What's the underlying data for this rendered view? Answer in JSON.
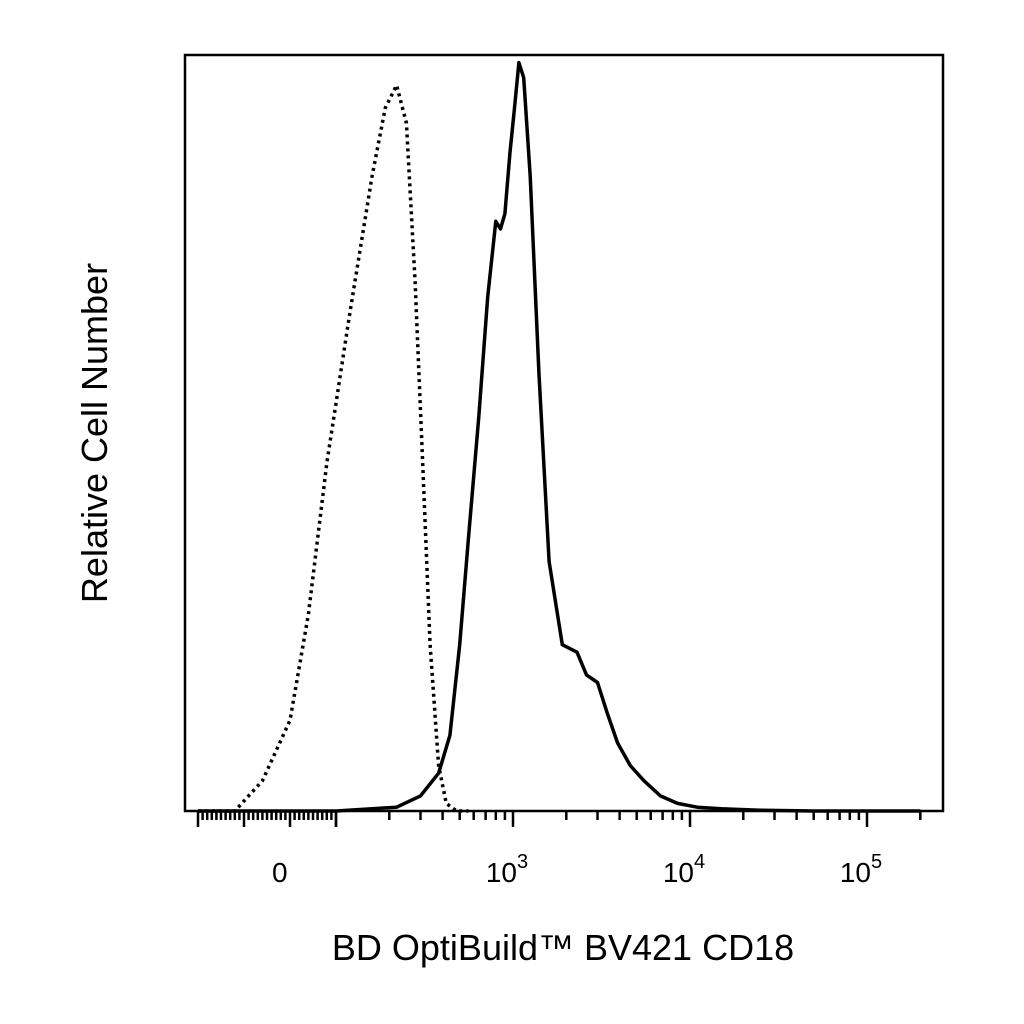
{
  "chart_data": {
    "type": "area",
    "title": "",
    "xlabel": "BD OptiBuild™ BV421 CD18",
    "ylabel": "Relative Cell Number",
    "x_scale": "biexponential",
    "xlim": [
      -200,
      200000
    ],
    "ylim": [
      0,
      1
    ],
    "grid": false,
    "legend": "none",
    "x_tick_labels": [
      {
        "value": 0,
        "base": "0",
        "exp": ""
      },
      {
        "value": 1000,
        "base": "10",
        "exp": "3"
      },
      {
        "value": 10000,
        "base": "10",
        "exp": "4"
      },
      {
        "value": 100000,
        "base": "10",
        "exp": "5"
      }
    ],
    "series": [
      {
        "style": "dotted",
        "color": "#000000",
        "x": [
          -200,
          -120,
          -60,
          0,
          40,
          80,
          120,
          160,
          190,
          220,
          250,
          280,
          310,
          340,
          380,
          420,
          480,
          560
        ],
        "y": [
          0,
          0,
          0.04,
          0.12,
          0.26,
          0.46,
          0.66,
          0.84,
          0.93,
          0.96,
          0.91,
          0.7,
          0.45,
          0.22,
          0.06,
          0.01,
          0,
          0
        ]
      },
      {
        "style": "solid",
        "color": "#000000",
        "x": [
          -200,
          100,
          220,
          300,
          380,
          440,
          500,
          560,
          640,
          720,
          800,
          850,
          900,
          960,
          1020,
          1080,
          1150,
          1250,
          1400,
          1600,
          1900,
          2300,
          2600,
          3000,
          3400,
          3900,
          4600,
          5500,
          6800,
          8500,
          11000,
          15000,
          25000,
          50000,
          100000,
          200000
        ],
        "y": [
          0,
          0,
          0.005,
          0.02,
          0.05,
          0.1,
          0.22,
          0.36,
          0.52,
          0.68,
          0.78,
          0.77,
          0.79,
          0.87,
          0.93,
          0.99,
          0.97,
          0.84,
          0.58,
          0.33,
          0.22,
          0.21,
          0.18,
          0.17,
          0.13,
          0.09,
          0.06,
          0.04,
          0.02,
          0.01,
          0.005,
          0.003,
          0.001,
          0,
          0,
          0
        ]
      }
    ]
  }
}
